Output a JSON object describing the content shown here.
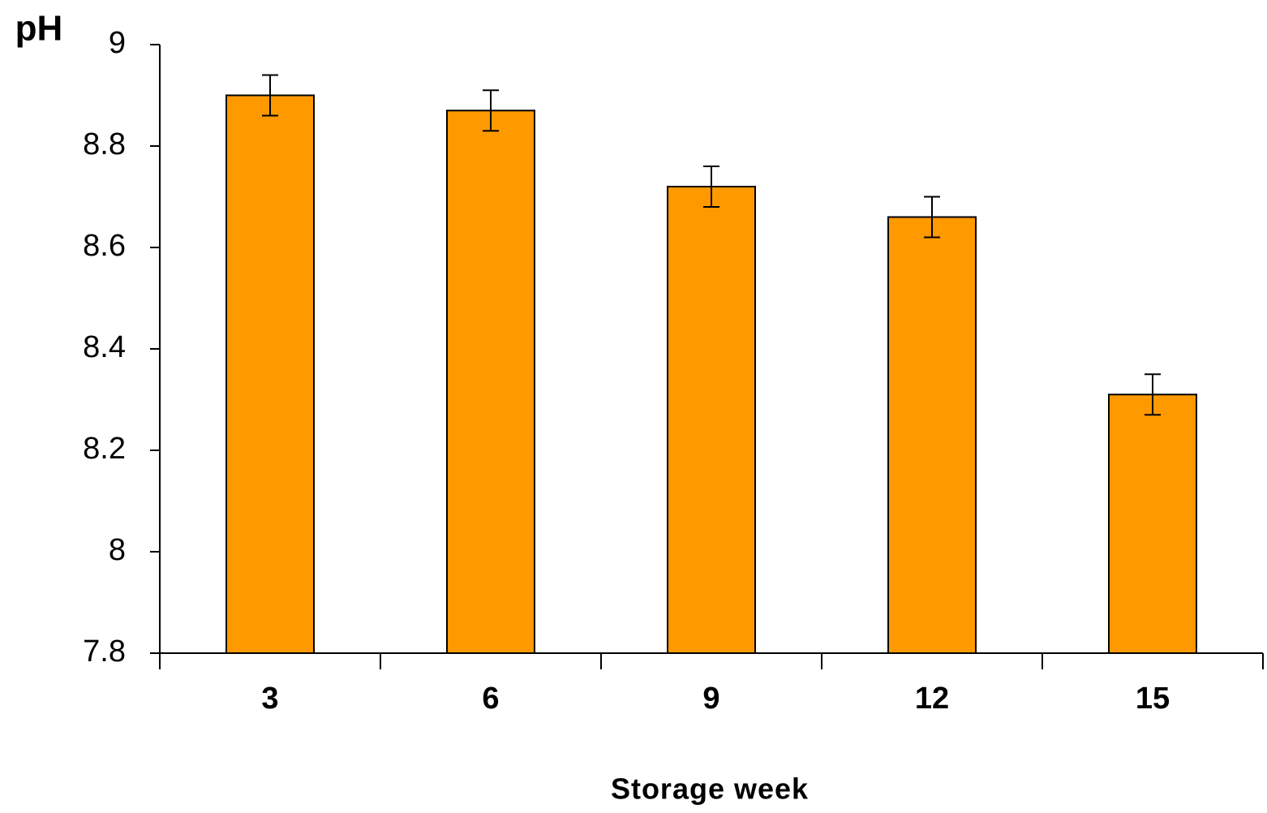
{
  "chart_data": {
    "type": "bar",
    "y_label": "pH",
    "x_label": "Storage week",
    "categories": [
      "3",
      "6",
      "9",
      "12",
      "15"
    ],
    "values": [
      8.9,
      8.87,
      8.72,
      8.66,
      8.31
    ],
    "errors": [
      0.04,
      0.04,
      0.04,
      0.04,
      0.04
    ],
    "color": "#ff9900",
    "ylim": [
      7.8,
      9
    ],
    "yticks": [
      7.8,
      8,
      8.2,
      8.4,
      8.6,
      8.8,
      9
    ],
    "grid": false
  }
}
